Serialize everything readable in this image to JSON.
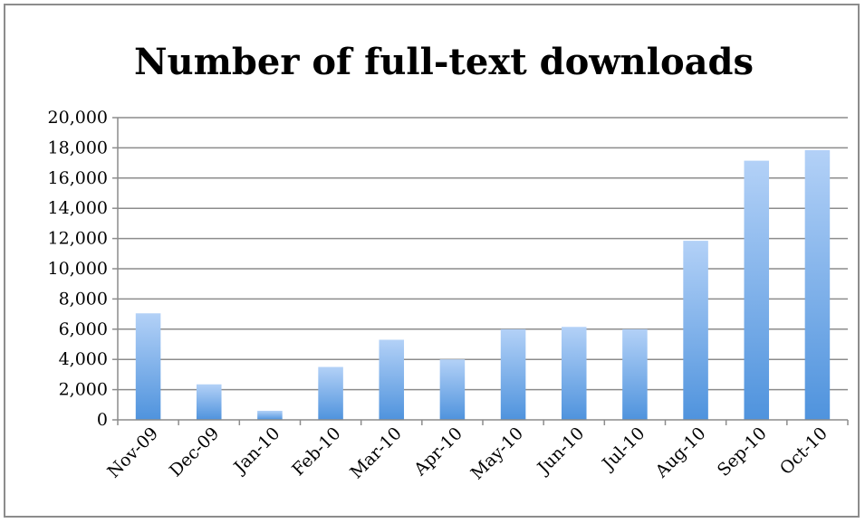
{
  "chart_data": {
    "type": "bar",
    "title": "Number of full-text downloads",
    "xlabel": "",
    "ylabel": "",
    "categories": [
      "Nov-09",
      "Dec-09",
      "Jan-10",
      "Feb-10",
      "Mar-10",
      "Apr-10",
      "May-10",
      "Jun-10",
      "Jul-10",
      "Aug-10",
      "Sep-10",
      "Oct-10"
    ],
    "values": [
      7050,
      2350,
      600,
      3500,
      5300,
      4000,
      6000,
      6150,
      6000,
      11850,
      17150,
      17850
    ],
    "ylim": [
      0,
      20000
    ],
    "yticks": [
      0,
      2000,
      4000,
      6000,
      8000,
      10000,
      12000,
      14000,
      16000,
      18000,
      20000
    ],
    "ytick_labels": [
      "0",
      "2,000",
      "4,000",
      "6,000",
      "8,000",
      "10,000",
      "12,000",
      "14,000",
      "16,000",
      "18,000",
      "20,000"
    ],
    "grid": true,
    "legend": "none",
    "colors": {
      "bar_top": "#b3d1f7",
      "bar_bottom": "#4f93dd",
      "grid": "#8c8c8c",
      "axis": "#8c8c8c"
    }
  }
}
